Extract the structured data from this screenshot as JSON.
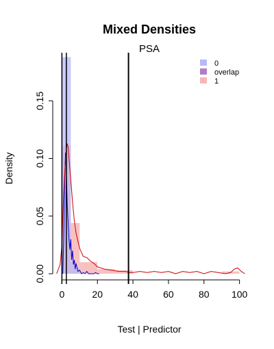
{
  "chart_data": {
    "type": "histogram-density",
    "title": "Mixed Densities",
    "subtitle": "PSA",
    "xlabel": "Test | Predictor",
    "ylabel": "Density",
    "xlim": [
      -4,
      104
    ],
    "ylim": [
      0,
      0.19
    ],
    "x_ticks": [
      0,
      20,
      40,
      60,
      80,
      100
    ],
    "x_tick_labels": [
      "0",
      "20",
      "40",
      "60",
      "80",
      "100"
    ],
    "y_ticks": [
      0.0,
      0.05,
      0.1,
      0.15
    ],
    "y_tick_labels": [
      "0.00",
      "0.05",
      "0.10",
      "0.15"
    ],
    "legend": {
      "position": "top-right",
      "entries": [
        {
          "label": "0",
          "color": "#b8b8f8"
        },
        {
          "label": "overlap",
          "color": "#b07ec8"
        },
        {
          "label": "1",
          "color": "#f7b6b6"
        }
      ]
    },
    "histogram_0": {
      "color": "#b8b8f8",
      "bins": [
        {
          "x0": 0,
          "x1": 2.5,
          "density": 0.188
        },
        {
          "x0": 2.5,
          "x1": 5,
          "density": 0.188
        },
        {
          "x0": 5,
          "x1": 7.5,
          "density": 0.01
        },
        {
          "x0": 7.5,
          "x1": 10,
          "density": 0.005
        }
      ]
    },
    "histogram_1": {
      "color": "#f7b6b6",
      "bins": [
        {
          "x0": 0,
          "x1": 5,
          "density": 0.111
        },
        {
          "x0": 5,
          "x1": 10,
          "density": 0.044
        },
        {
          "x0": 10,
          "x1": 20,
          "density": 0.01
        },
        {
          "x0": 20,
          "x1": 30,
          "density": 0.004
        },
        {
          "x0": 30,
          "x1": 40,
          "density": 0.003
        },
        {
          "x0": 90,
          "x1": 100,
          "density": 0.002
        }
      ]
    },
    "series": [
      {
        "color": "#0000cc",
        "x": [
          0.5,
          1,
          1.5,
          2,
          2.5,
          3,
          3.5,
          4,
          4.5,
          5,
          5.5,
          6,
          6.5,
          7,
          7.5,
          8,
          9,
          10,
          11,
          12,
          13,
          14,
          15,
          16,
          17,
          18,
          19,
          20,
          21
        ],
        "y": [
          0.0,
          0.03,
          0.078,
          0.105,
          0.088,
          0.06,
          0.045,
          0.03,
          0.021,
          0.03,
          0.012,
          0.02,
          0.008,
          0.012,
          0.004,
          0.009,
          0.002,
          0.003,
          0.0,
          0.001,
          0.0,
          0.002,
          0.0,
          0.0,
          0.0,
          0.0,
          0.001,
          0.0,
          0.0
        ]
      },
      {
        "color": "#cc0000",
        "x": [
          -3,
          -1,
          0,
          0.5,
          1,
          1.5,
          2,
          2.5,
          3,
          3.5,
          4,
          5,
          6,
          7,
          8,
          10,
          12,
          14,
          16,
          18,
          20,
          24,
          28,
          32,
          36,
          38,
          40,
          44,
          48,
          52,
          56,
          60,
          64,
          68,
          72,
          76,
          80,
          84,
          88,
          92,
          95,
          97,
          99,
          101,
          103
        ],
        "y": [
          0.0,
          0.008,
          0.025,
          0.05,
          0.07,
          0.085,
          0.1,
          0.108,
          0.113,
          0.11,
          0.1,
          0.082,
          0.062,
          0.046,
          0.035,
          0.022,
          0.015,
          0.014,
          0.011,
          0.009,
          0.006,
          0.004,
          0.003,
          0.002,
          0.002,
          0.001,
          0.001,
          0.002,
          0.001,
          0.002,
          0.001,
          0.002,
          0.0,
          0.002,
          0.001,
          0.002,
          0.0,
          0.002,
          0.001,
          0.0,
          0.001,
          0.004,
          0.005,
          0.002,
          0.0
        ]
      }
    ],
    "vertical_lines": [
      0,
      2.5,
      37.5
    ]
  }
}
